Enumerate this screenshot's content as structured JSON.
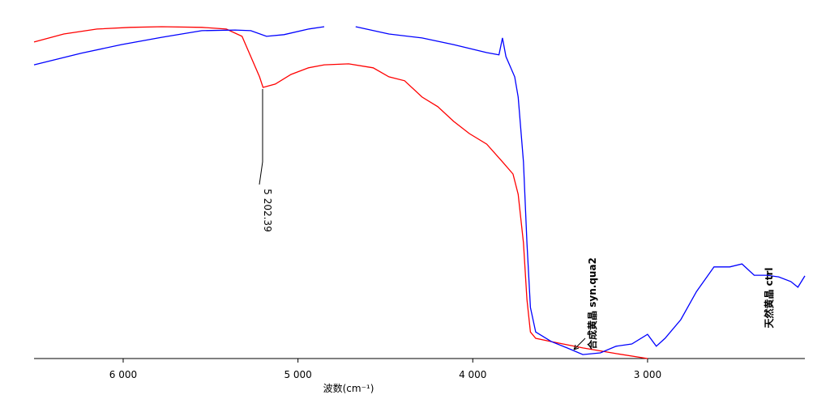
{
  "chart_data": {
    "type": "line",
    "xlabel": "波数(cm⁻¹)",
    "xlim": [
      6510,
      2100
    ],
    "ylim": [
      0,
      100
    ],
    "xticks": [
      {
        "value": 6000,
        "label": "6 000"
      },
      {
        "value": 5000,
        "label": "5 000"
      },
      {
        "value": 4000,
        "label": "4 000"
      },
      {
        "value": 3000,
        "label": "3 000"
      }
    ],
    "series": [
      {
        "name": "合成黄晶 syn.qua2",
        "color": "#ff0000",
        "x": [
          6510,
          6340,
          6150,
          5960,
          5780,
          5550,
          5410,
          5320,
          5270,
          5220,
          5200,
          5130,
          5040,
          4940,
          4850,
          4710,
          4570,
          4480,
          4390,
          4290,
          4200,
          4110,
          4020,
          3920,
          3830,
          3770,
          3740,
          3710,
          3690,
          3670,
          3640,
          3550,
          3370,
          3180,
          3000
        ],
        "values": [
          95.4,
          97.8,
          99.3,
          99.8,
          100,
          99.8,
          99.3,
          97.1,
          91.0,
          84.9,
          81.7,
          82.7,
          85.6,
          87.6,
          88.5,
          88.8,
          87.6,
          84.9,
          83.7,
          78.8,
          75.9,
          71.5,
          67.8,
          64.6,
          59.3,
          55.6,
          49.5,
          34.9,
          17.8,
          8.0,
          6.1,
          5.1,
          3.2,
          1.5,
          0
        ]
      },
      {
        "name": "天然黄晶 ctrl",
        "color": "#0000ff",
        "x": [
          6510,
          6240,
          6010,
          5780,
          5550,
          5360,
          5270,
          5180,
          5080,
          4940,
          4850,
          4770,
          4670,
          4480,
          4290,
          4110,
          3920,
          3850,
          3830,
          3810,
          3760,
          3740,
          3710,
          3690,
          3670,
          3640,
          3550,
          3460,
          3370,
          3270,
          3180,
          3090,
          3000,
          2950,
          2900,
          2810,
          2720,
          2620,
          2530,
          2460,
          2390,
          2320,
          2250,
          2180,
          2140,
          2100
        ],
        "values": [
          88.5,
          92.0,
          94.6,
          96.8,
          98.8,
          99.0,
          98.8,
          97.1,
          97.6,
          99.3,
          100,
          null,
          100,
          97.8,
          96.6,
          94.6,
          92.2,
          91.5,
          96.6,
          91.0,
          84.9,
          78.8,
          59.3,
          34.9,
          15.4,
          8.0,
          5.1,
          3.2,
          1.2,
          1.7,
          3.7,
          4.4,
          7.3,
          3.7,
          6.1,
          11.7,
          20.2,
          27.6,
          27.6,
          28.5,
          25.1,
          25.1,
          24.6,
          23.2,
          21.5,
          24.9
        ]
      }
    ],
    "annotations": [
      {
        "x": 5202.39,
        "label": "5 202.39"
      }
    ]
  }
}
